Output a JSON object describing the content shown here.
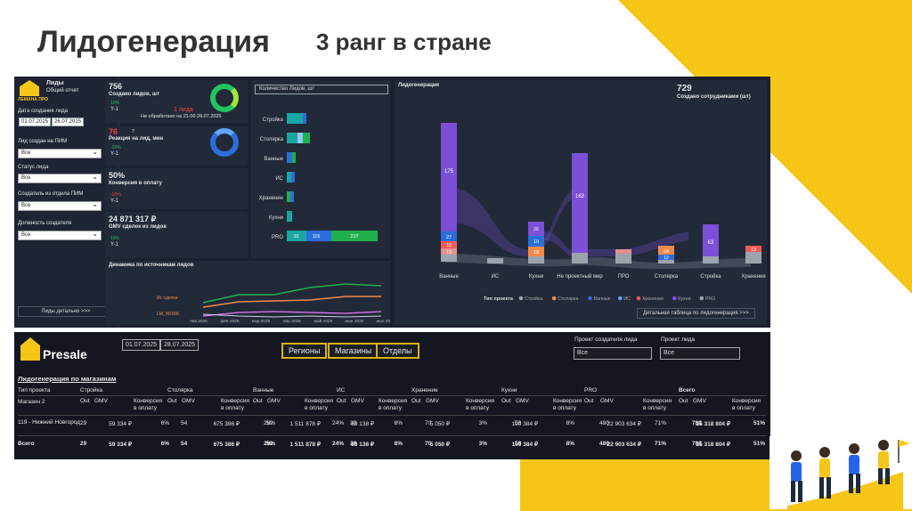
{
  "slide": {
    "title": "Лидогенерация",
    "subtitle": "3 ранг в стране"
  },
  "dashboard": {
    "logo": "ЛЕМАНА ПРО",
    "report_title": "Лиды",
    "report_subtitle": "Общий отчет",
    "filters": {
      "date_label": "Дата создания лида",
      "date_from": "01.07.2025",
      "date_to": "26.07.2025",
      "pim_label": "Лид создан на ПИМ",
      "pim_value": "Все",
      "status_label": "Статус лида",
      "status_value": "Все",
      "dept_label": "Создатель из отдела ПИМ",
      "dept_value": "Все",
      "position_label": "Должность создателя",
      "position_value": "Все"
    },
    "leads_detail_btn": "Лиды детально >>>",
    "kpi": {
      "created_value": "756",
      "created_label": "Создано лидов, шт",
      "created_delta": "10%",
      "created_y": "Y-1",
      "unprocessed_value": "1 лида",
      "unprocessed_label": "Не обработано на 21:00 28.07.2025",
      "reaction_value": "76",
      "reaction_label": "Реакция на лид, мин",
      "reaction_delta": "-10%",
      "reaction_y": "Y-1",
      "reaction_q": "?",
      "conversion_value": "50%",
      "conversion_label": "Конверсия в оплату",
      "conversion_delta": "-10%",
      "conversion_y": "Y-1",
      "gmv_value": "24 871 317 ₽",
      "gmv_label": "GMV сделок из лидов",
      "gmv_delta": "16%",
      "gmv_y": "Y-1",
      "employees_value": "729",
      "employees_label": "Создано сотрудниками (шт)"
    },
    "qty_select": "Количество Лидов, шт",
    "hbar_data": {
      "categories": [
        "Стройка",
        "Столярка",
        "Ванные",
        "ИС",
        "Хранение",
        "Кухни",
        "PRO"
      ],
      "pro_values": [
        "91",
        "115",
        "237"
      ]
    },
    "dynamics": {
      "title": "Динамика по источникам лидов",
      "series_labels": [
        "Ис сделки",
        "LM_WORK"
      ],
      "months": [
        "янв 2025",
        "фев 2025",
        "мар 2025",
        "апр 2025",
        "май 2025",
        "июн 2025",
        "июл 2025"
      ]
    },
    "leadgen": {
      "title": "Лидогенерация",
      "categories": [
        "Ванные",
        "ИС",
        "Кухни",
        "Не проектный мир",
        "ПРО",
        "Столярка",
        "Стройка",
        "Хранение"
      ],
      "labels": {
        "vannye": "175",
        "vannye_blue": "27",
        "vannye_red": "16",
        "vannye_pink": "13",
        "kuhni": "26",
        "kuhni_blue": "19",
        "kuhni_pink": "18",
        "npm": "163",
        "stolyarka_red": "24",
        "stolyarka_blue": "12",
        "stroyka": "63",
        "hranenie": "13"
      },
      "legend_title": "Тип проекта",
      "legend": [
        "Стройка",
        "Столярка",
        "Ванные",
        "ИС",
        "Хранение",
        "Кухни",
        "PRO"
      ],
      "detail_btn": "Детальная таблица по лидогенерация >>>"
    },
    "colors": {
      "purple": "#7b4fd6",
      "blue": "#2a6fdb",
      "red": "#f05a5a",
      "pink": "#e59090",
      "orange": "#f08a4b",
      "green": "#20b04b",
      "teal": "#1aa6a0"
    }
  },
  "presale": {
    "logo": "Presale",
    "date_from": "01.07.2025",
    "date_to": "28.07.2025",
    "btn_regions": "Регионы",
    "btn_shops": "Магазины",
    "btn_depts": "Отделы",
    "project_creator_label": "Проект создателя лида",
    "project_creator_value": "Все",
    "project_type_label": "Проект лида",
    "project_type_value": "Все",
    "table_title": "Лидогенерация по магазинам",
    "type_header": "Тип проекта",
    "shop_header": "Магазин 2",
    "groups": [
      "Стройка",
      "Столярка",
      "Ванные",
      "ИС",
      "Хранение",
      "Кухни",
      "PRO",
      "Всего"
    ],
    "sub_headers": {
      "out": "Out",
      "gmv": "GMV",
      "conv": "Конверсия в оплату"
    },
    "rows": [
      {
        "shop": "119 - Нижний Новгород",
        "cells": [
          "29",
          "59 334 ₽",
          "6%",
          "54",
          "675 386 ₽",
          "29%",
          "52",
          "1 511 878 ₽",
          "24%",
          "39",
          "63 138 ₽",
          "8%",
          "70",
          "5 050 ₽",
          "3%",
          "58",
          "100 384 ₽",
          "8%",
          "480",
          "22 903 634 ₽",
          "71%",
          "782",
          "25 318 804 ₽",
          "51%"
        ]
      },
      {
        "shop": "Всего",
        "cells": [
          "29",
          "59 334 ₽",
          "6%",
          "54",
          "675 386 ₽",
          "29%",
          "52",
          "1 511 878 ₽",
          "24%",
          "39",
          "63 138 ₽",
          "8%",
          "70",
          "5 050 ₽",
          "3%",
          "58",
          "100 384 ₽",
          "8%",
          "480",
          "22 903 634 ₽",
          "71%",
          "782",
          "25 318 804 ₽",
          "51%"
        ]
      }
    ]
  }
}
